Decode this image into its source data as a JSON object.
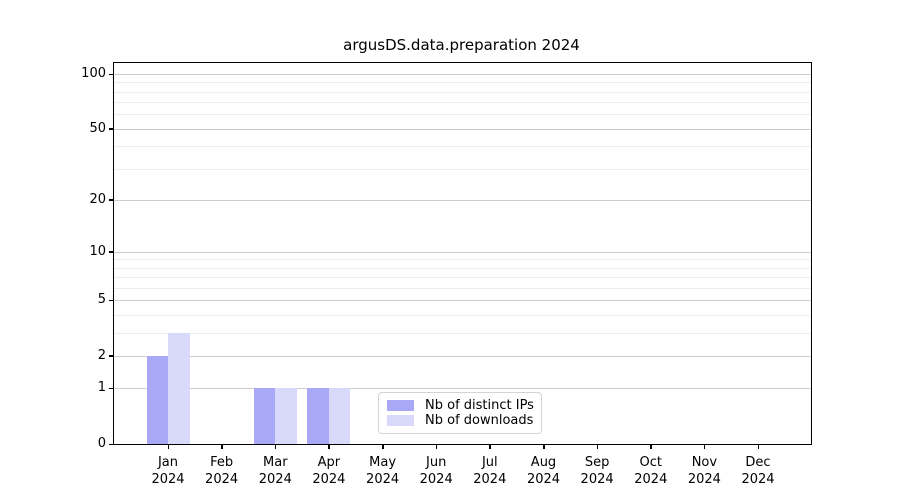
{
  "figure": {
    "title": "argusDS.data.preparation 2024",
    "background_color": "#ffffff"
  },
  "chart_data": {
    "type": "bar",
    "title": "argusDS.data.preparation 2024",
    "categories": [
      "Jan",
      "Feb",
      "Mar",
      "Apr",
      "May",
      "Jun",
      "Jul",
      "Aug",
      "Sep",
      "Oct",
      "Nov",
      "Dec"
    ],
    "x_year_label": "2024",
    "series": [
      {
        "name": "Nb of distinct IPs",
        "color": "#a8a8f6",
        "values": [
          2,
          0,
          1,
          1,
          0,
          0,
          0,
          0,
          0,
          0,
          0,
          0
        ]
      },
      {
        "name": "Nb of downloads",
        "color": "#d9d9fb",
        "values": [
          3,
          0,
          1,
          1,
          0,
          0,
          0,
          0,
          0,
          0,
          0,
          0
        ]
      }
    ],
    "xlabel": "",
    "ylabel": "",
    "y_scale": "log1p",
    "ylim": [
      0,
      115
    ],
    "y_major_ticks": [
      0,
      1,
      2,
      5,
      10,
      20,
      50,
      100
    ],
    "y_minor_ticks": [
      3,
      4,
      6,
      7,
      8,
      9,
      30,
      40,
      60,
      70,
      80,
      90
    ],
    "grid": "horizontal-major-and-minor",
    "legend_position": "inside-bottom-center",
    "colors": {
      "major_grid": "#cccccc",
      "minor_grid": "#ededed",
      "spine": "#000000",
      "text": "#000000"
    }
  }
}
